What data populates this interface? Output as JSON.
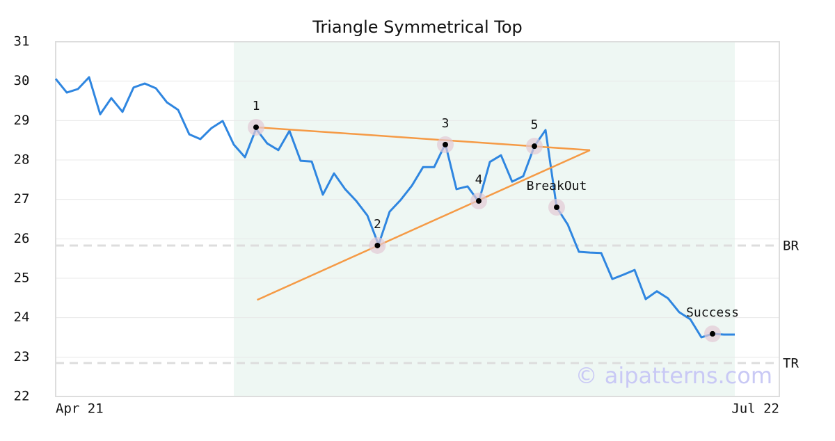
{
  "chart_data": {
    "type": "line",
    "title": "Triangle Symmetrical Top",
    "x": [
      0,
      1,
      2,
      3,
      4,
      5,
      6,
      7,
      8,
      9,
      10,
      11,
      12,
      13,
      14,
      15,
      16,
      17,
      18,
      19,
      20,
      21,
      22,
      23,
      24,
      25,
      26,
      27,
      28,
      29,
      30,
      31,
      32,
      33,
      34,
      35,
      36,
      37,
      38,
      39,
      40,
      41,
      42,
      43,
      44,
      45,
      46,
      47,
      48,
      49,
      50,
      51,
      52,
      53,
      54,
      55,
      56,
      57,
      58,
      59,
      60,
      61
    ],
    "values": [
      30.06,
      29.71,
      29.8,
      30.1,
      29.16,
      29.57,
      29.22,
      29.84,
      29.94,
      29.82,
      29.46,
      29.27,
      28.65,
      28.53,
      28.81,
      28.99,
      28.39,
      28.07,
      28.79,
      28.42,
      28.25,
      28.74,
      27.98,
      27.96,
      27.12,
      27.66,
      27.26,
      26.96,
      26.59,
      25.85,
      26.69,
      26.99,
      27.35,
      27.82,
      27.82,
      28.41,
      27.26,
      27.33,
      26.94,
      27.95,
      28.12,
      27.45,
      27.59,
      28.35,
      28.76,
      26.8,
      26.36,
      25.67,
      25.65,
      25.64,
      24.98,
      25.09,
      25.21,
      24.47,
      24.67,
      24.49,
      24.14,
      23.96,
      23.5,
      23.59,
      23.57,
      23.57
    ],
    "color": "#2f86e0",
    "xlim": [
      0,
      65
    ],
    "xticks": [
      {
        "value": 0,
        "label": "Apr 21"
      },
      {
        "value": 65,
        "label": "Jul 22"
      }
    ],
    "ylim": [
      22,
      31
    ],
    "yticks": [
      22,
      23,
      24,
      25,
      26,
      27,
      28,
      29,
      30,
      31
    ],
    "grid": true,
    "highlight": {
      "x": [
        16,
        61
      ],
      "color": "#eef7f3"
    },
    "trend_lines": {
      "color": "#f59a45",
      "lines": [
        {
          "x": [
            18,
            48
          ],
          "values": [
            28.83,
            28.25
          ]
        },
        {
          "x": [
            18.1,
            48
          ],
          "values": [
            24.45,
            28.25
          ]
        }
      ]
    },
    "pattern_points": [
      {
        "label": "1",
        "x": 18,
        "value": 28.83
      },
      {
        "label": "2",
        "x": 28.9,
        "value": 25.83
      },
      {
        "label": "3",
        "x": 35,
        "value": 28.39
      },
      {
        "label": "4",
        "x": 38,
        "value": 26.96
      },
      {
        "label": "5",
        "x": 43,
        "value": 28.35
      },
      {
        "label": "BreakOut",
        "x": 45,
        "value": 26.8
      },
      {
        "label": "Success",
        "x": 59,
        "value": 23.59
      }
    ],
    "levels": [
      {
        "label": "BR",
        "value": 25.83
      },
      {
        "label": "TR",
        "value": 22.85
      }
    ],
    "watermark": "© aipatterns.com"
  }
}
